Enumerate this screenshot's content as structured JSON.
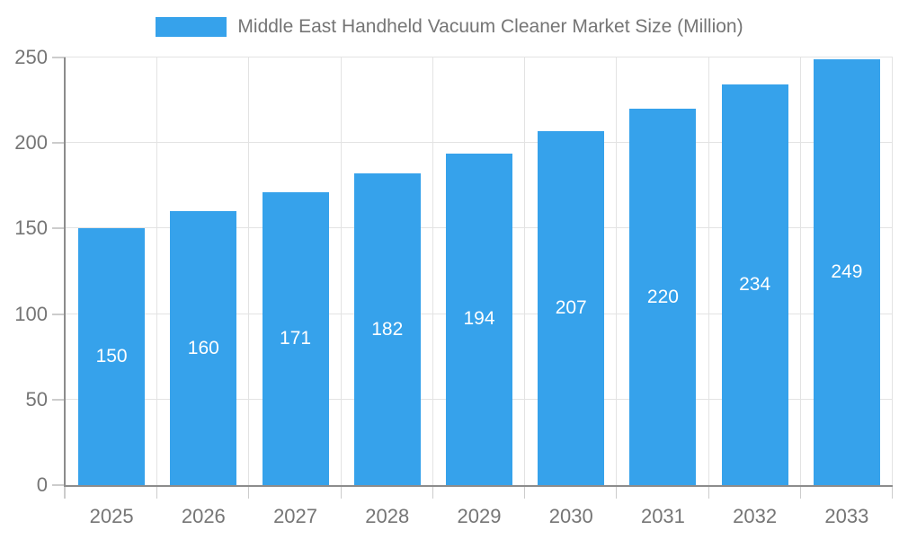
{
  "chart_data": {
    "type": "bar",
    "title": "Middle East Handheld Vacuum Cleaner Market Size (Million)",
    "categories": [
      "2025",
      "2026",
      "2027",
      "2028",
      "2029",
      "2030",
      "2031",
      "2032",
      "2033"
    ],
    "values": [
      150,
      160,
      171,
      182,
      194,
      207,
      220,
      234,
      249
    ],
    "xlabel": "",
    "ylabel": "",
    "ylim": [
      0,
      250
    ],
    "yticks": [
      0,
      50,
      100,
      150,
      200,
      250
    ],
    "grid": true,
    "legend_position": "top",
    "value_label_position": "inside-center",
    "colors": {
      "bar": "#36A2EB",
      "value_label": "#FFFFFF",
      "axis_text": "#757575",
      "axis_line": "#8C8C8C",
      "tick": "#CCCCCC",
      "gridline": "#E3E3E3",
      "background": "#FFFFFF"
    }
  }
}
